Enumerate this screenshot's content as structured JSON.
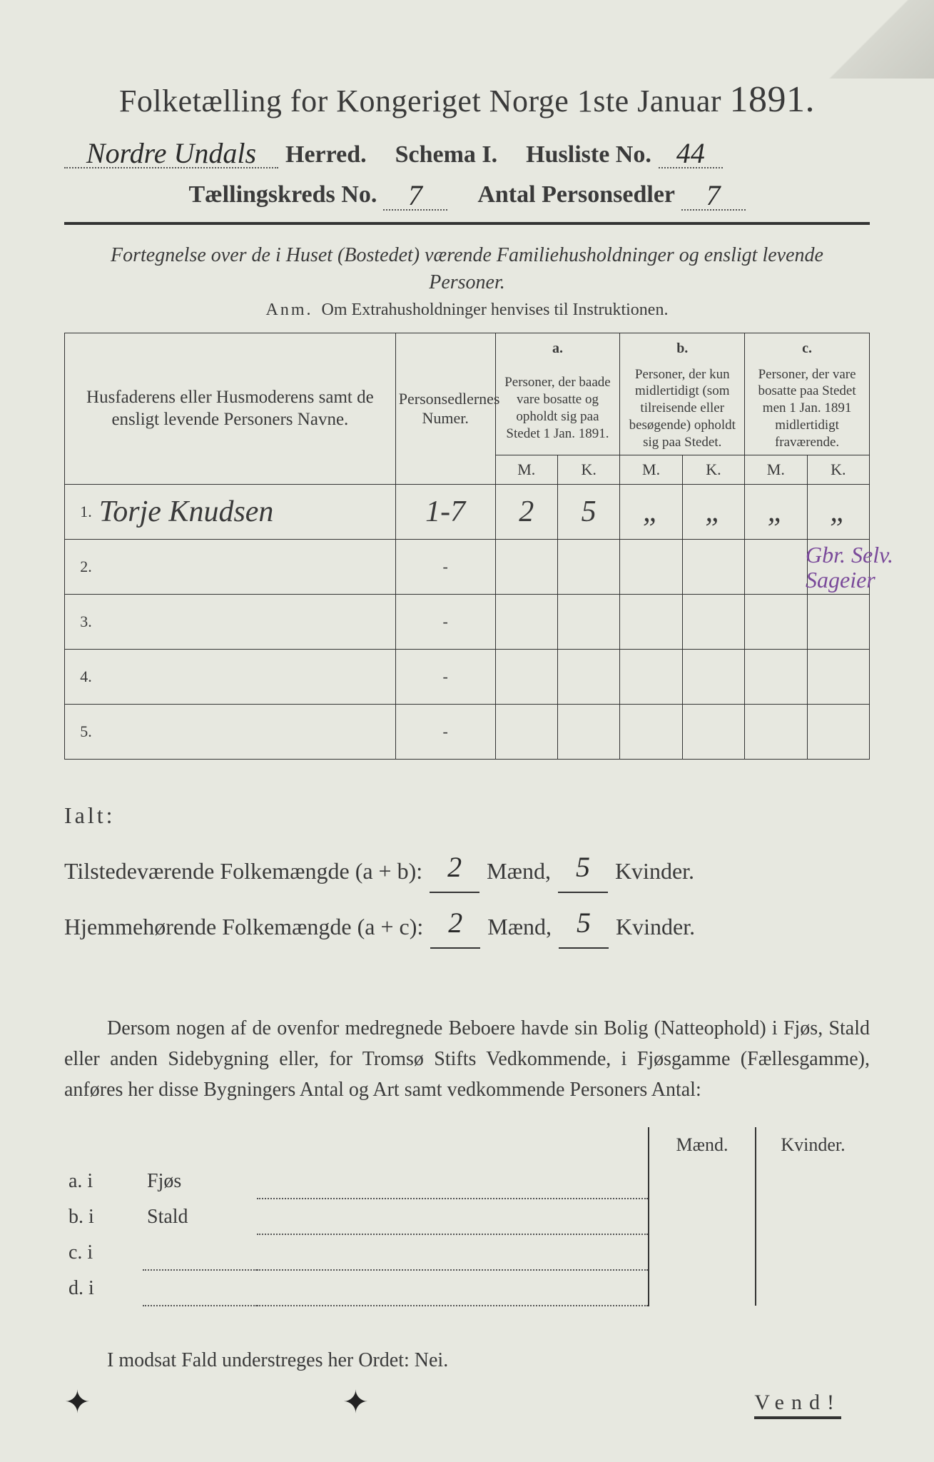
{
  "title": {
    "main": "Folketælling for Kongeriget Norge 1ste Januar",
    "year": "1891."
  },
  "header": {
    "herred_value": "Nordre Undals",
    "herred_label": "Herred.",
    "schema_label": "Schema I.",
    "husliste_label": "Husliste No.",
    "husliste_value": "44",
    "kreds_label": "Tællingskreds No.",
    "kreds_value": "7",
    "antal_label": "Antal Personsedler",
    "antal_value": "7"
  },
  "subtitle": "Fortegnelse over de i Huset (Bostedet) værende Familiehusholdninger og ensligt levende Personer.",
  "anm": {
    "prefix": "Anm.",
    "text": "Om Extrahusholdninger henvises til Instruktionen."
  },
  "columns": {
    "name": "Husfaderens eller Husmoderens samt de ensligt levende Personers Navne.",
    "numer": "Personsedlernes Numer.",
    "a_label": "a.",
    "a": "Personer, der baade vare bosatte og opholdt sig paa Stedet 1 Jan. 1891.",
    "b_label": "b.",
    "b": "Personer, der kun midlertidigt (som tilreisende eller besøgende) opholdt sig paa Stedet.",
    "c_label": "c.",
    "c": "Personer, der vare bosatte paa Stedet men 1 Jan. 1891 midlertidigt fraværende.",
    "M": "M.",
    "K": "K."
  },
  "rows": [
    {
      "n": "1.",
      "name": "Torje Knudsen",
      "numer": "1-7",
      "aM": "2",
      "aK": "5",
      "bM": "„",
      "bK": "„",
      "cM": "„",
      "cK": "„"
    },
    {
      "n": "2.",
      "name": "",
      "numer": "-",
      "aM": "",
      "aK": "",
      "bM": "",
      "bK": "",
      "cM": "",
      "cK": ""
    },
    {
      "n": "3.",
      "name": "",
      "numer": "-",
      "aM": "",
      "aK": "",
      "bM": "",
      "bK": "",
      "cM": "",
      "cK": ""
    },
    {
      "n": "4.",
      "name": "",
      "numer": "-",
      "aM": "",
      "aK": "",
      "bM": "",
      "bK": "",
      "cM": "",
      "cK": ""
    },
    {
      "n": "5.",
      "name": "",
      "numer": "-",
      "aM": "",
      "aK": "",
      "bM": "",
      "bK": "",
      "cM": "",
      "cK": ""
    }
  ],
  "margin_note": {
    "l1": "Gbr. Selv.",
    "l2": "Sageier"
  },
  "totals": {
    "ialt": "Ialt:",
    "row1_label": "Tilstedeværende Folkemængde (a + b):",
    "row2_label": "Hjemmehørende Folkemængde (a + c):",
    "maend": "Mænd,",
    "kvinder": "Kvinder.",
    "r1m": "2",
    "r1k": "5",
    "r2m": "2",
    "r2k": "5"
  },
  "paragraph": "Dersom nogen af de ovenfor medregnede Beboere havde sin Bolig (Natteophold) i Fjøs, Stald eller anden Sidebygning eller, for Tromsø Stifts Vedkommende, i Fjøsgamme (Fællesgamme), anføres her disse Bygningers Antal og Art samt vedkommende Personers Antal:",
  "bottom": {
    "maend": "Mænd.",
    "kvinder": "Kvinder.",
    "a": "a.  i",
    "a_lbl": "Fjøs",
    "b": "b.  i",
    "b_lbl": "Stald",
    "c": "c.  i",
    "d": "d.  i"
  },
  "footer": "I modsat Fald understreges her Ordet: Nei.",
  "vend": "Vend!",
  "colors": {
    "bg": "#e7e8e0",
    "ink": "#3a3a3a",
    "purple": "#7a4a9a"
  }
}
